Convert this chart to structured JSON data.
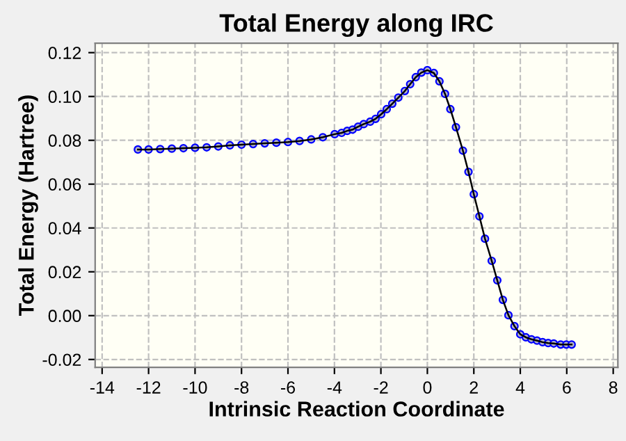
{
  "chart_data": {
    "type": "line",
    "title": "Total Energy along IRC",
    "xlabel": "Intrinsic Reaction Coordinate",
    "ylabel": "Total Energy (Hartree)",
    "xlim": [
      -14.3,
      8.2
    ],
    "ylim": [
      -0.0236,
      0.1243
    ],
    "xticks": [
      -14,
      -12,
      -10,
      -8,
      -6,
      -4,
      -2,
      0,
      2,
      4,
      6,
      8
    ],
    "yticks": [
      {
        "value": -0.02,
        "label": "-0.02"
      },
      {
        "value": 0,
        "label": "0.00"
      },
      {
        "value": 0.02,
        "label": "0.02"
      },
      {
        "value": 0.04,
        "label": "0.04"
      },
      {
        "value": 0.06,
        "label": "0.06"
      },
      {
        "value": 0.08,
        "label": "0.08"
      },
      {
        "value": 0.1,
        "label": "0.10"
      },
      {
        "value": 0.12,
        "label": "0.12"
      }
    ],
    "grid": true,
    "marker": "circle",
    "line_style": "solid",
    "series": [
      {
        "color": "#0000ff",
        "x": [
          -12.46,
          -12.0,
          -11.5,
          -11.0,
          -10.5,
          -10.0,
          -9.5,
          -9.0,
          -8.5,
          -8.0,
          -7.5,
          -7.0,
          -6.5,
          -6.0,
          -5.5,
          -5.0,
          -4.5,
          -3.99,
          -3.69,
          -3.45,
          -3.22,
          -2.98,
          -2.74,
          -2.46,
          -2.23,
          -1.99,
          -1.75,
          -1.51,
          -1.25,
          -0.97,
          -0.74,
          -0.5,
          -0.26,
          0,
          0.28,
          0.52,
          0.76,
          0.99,
          1.23,
          1.53,
          1.77,
          2.0,
          2.24,
          2.48,
          2.77,
          3.01,
          3.25,
          3.49,
          3.75,
          4.0,
          4.24,
          4.48,
          4.72,
          4.96,
          5.2,
          5.44,
          5.74,
          5.98,
          6.21
        ],
        "values": [
          0.0758,
          0.0758,
          0.076,
          0.0762,
          0.0764,
          0.0766,
          0.0768,
          0.0772,
          0.0777,
          0.078,
          0.0783,
          0.0786,
          0.0789,
          0.0792,
          0.0797,
          0.0804,
          0.0814,
          0.0828,
          0.0834,
          0.0843,
          0.0849,
          0.0862,
          0.0874,
          0.0885,
          0.0898,
          0.0919,
          0.0942,
          0.0967,
          0.0995,
          0.1025,
          0.1056,
          0.1088,
          0.1109,
          0.112,
          0.1107,
          0.1069,
          0.1012,
          0.0942,
          0.086,
          0.0753,
          0.0656,
          0.0554,
          0.0453,
          0.0351,
          0.025,
          0.0161,
          0.0072,
          0.0002,
          -0.0048,
          -0.0085,
          -0.0099,
          -0.0108,
          -0.0114,
          -0.0121,
          -0.0125,
          -0.0127,
          -0.0132,
          -0.0132,
          -0.0132
        ]
      }
    ]
  }
}
